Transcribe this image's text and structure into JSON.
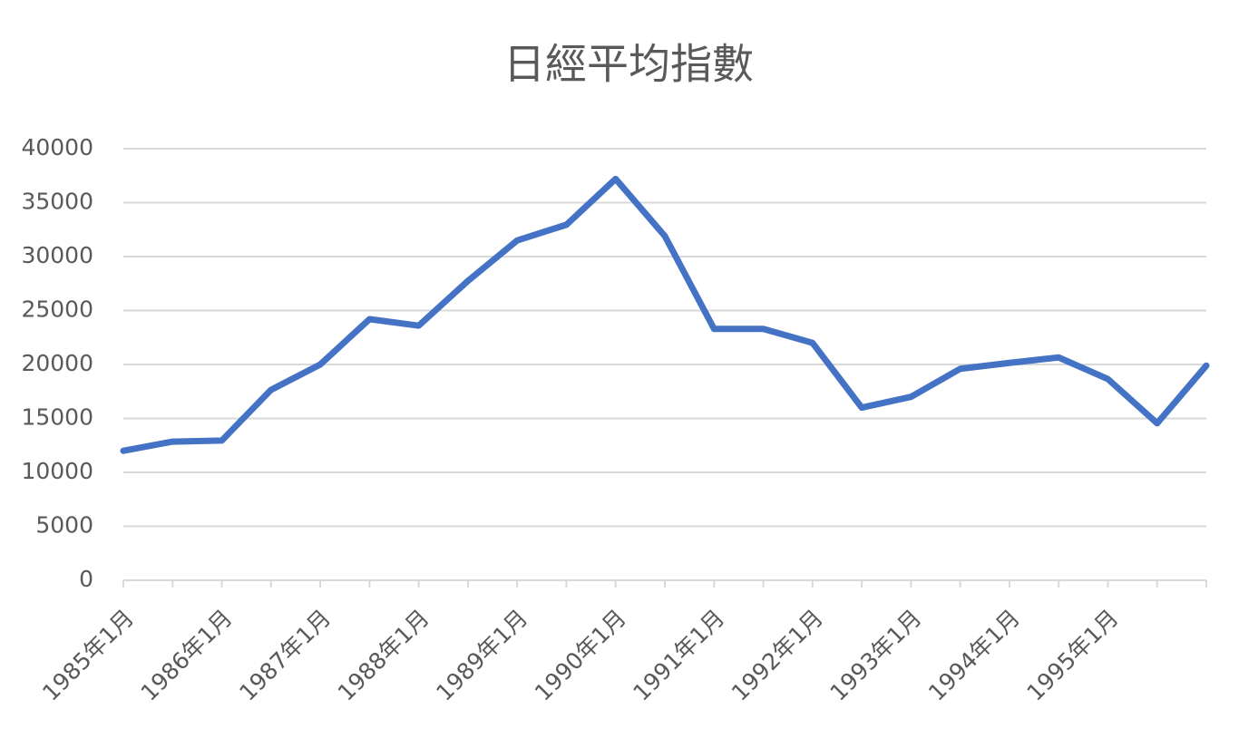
{
  "chart_data": {
    "type": "line",
    "title": "日經平均指數",
    "categories": [
      "1985年1月",
      null,
      "1986年1月",
      null,
      "1987年1月",
      null,
      "1988年1月",
      null,
      "1989年1月",
      null,
      "1990年1月",
      null,
      "1991年1月",
      null,
      "1992年1月",
      null,
      "1993年1月",
      null,
      "1994年1月",
      null,
      "1995年1月",
      null,
      null
    ],
    "series": [
      {
        "name": "日經平均指數",
        "color": "#4472c4",
        "values": [
          12000,
          12850,
          12950,
          17650,
          20000,
          24200,
          23600,
          27750,
          31500,
          32950,
          37200,
          31900,
          23300,
          23300,
          22000,
          16000,
          17000,
          19600,
          20150,
          20650,
          18650,
          14550,
          19900
        ]
      }
    ],
    "ylim": [
      0,
      40000
    ],
    "yticks": [
      0,
      5000,
      10000,
      15000,
      20000,
      25000,
      30000,
      35000,
      40000
    ],
    "grid": true
  }
}
